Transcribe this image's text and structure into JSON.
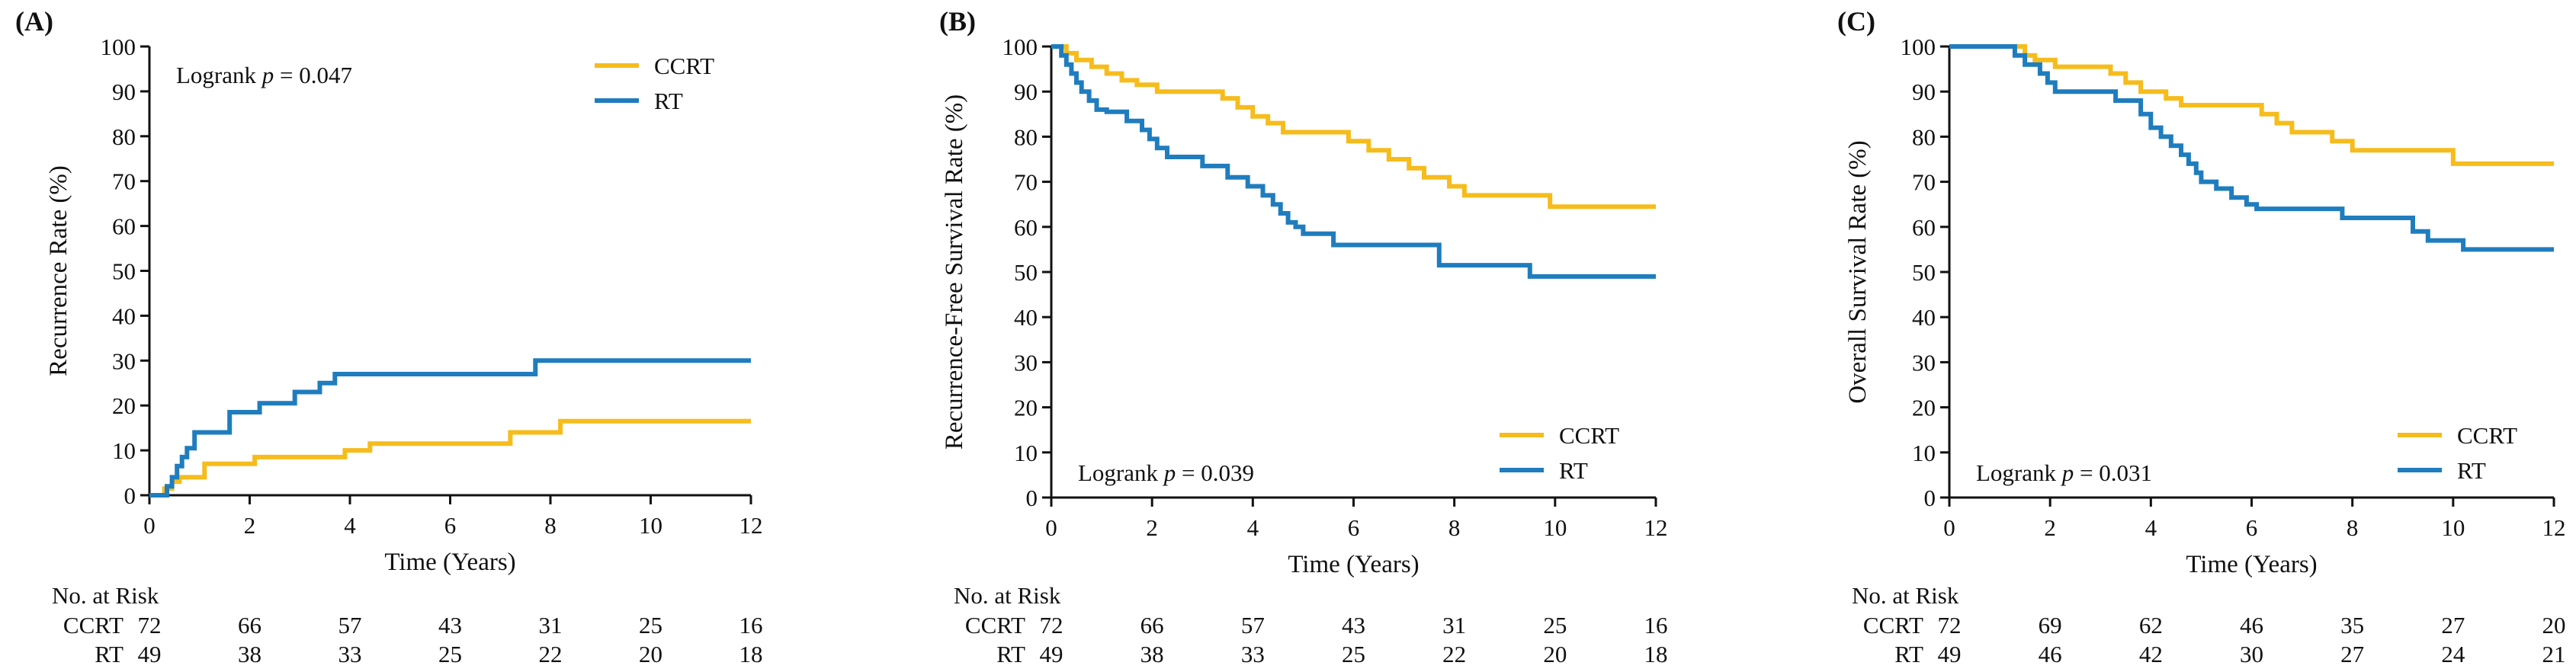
{
  "colors": {
    "CCRT": "#F5BC1C",
    "RT": "#1F7DBE"
  },
  "chart_data": [
    {
      "type": "line",
      "step": true,
      "panel_label": "(A)",
      "title": "",
      "xlabel": "Time (Years)",
      "ylabel": "Recurrence Rate (%)",
      "xlim": [
        0,
        12
      ],
      "ylim": [
        0,
        100
      ],
      "x_ticks": [
        0,
        2,
        4,
        6,
        8,
        10,
        12
      ],
      "y_ticks": [
        0,
        10,
        20,
        30,
        40,
        50,
        60,
        70,
        80,
        90,
        100
      ],
      "annotation": {
        "prefix": "Logrank ",
        "italic": "p",
        "suffix": " = 0.047"
      },
      "annotation_position": "top-left",
      "legend_position": "top-right",
      "legend": [
        "CCRT",
        "RT"
      ],
      "series": [
        {
          "name": "CCRT",
          "x": [
            0,
            0.3,
            0.45,
            0.6,
            0.75,
            1.1,
            1.2,
            2.1,
            3.9,
            4.4,
            7.2,
            8.2,
            12
          ],
          "y": [
            0,
            1.5,
            3,
            4,
            4,
            7,
            7,
            8.5,
            10,
            11.5,
            14,
            16.5,
            16.5
          ]
        },
        {
          "name": "RT",
          "x": [
            0,
            0.35,
            0.45,
            0.55,
            0.65,
            0.75,
            0.9,
            1.6,
            2.2,
            2.9,
            3.4,
            3.7,
            7.7,
            12
          ],
          "y": [
            0,
            2,
            4,
            6.5,
            8.5,
            10.5,
            14,
            18.5,
            20.5,
            23,
            25,
            27,
            30,
            30
          ]
        }
      ],
      "risk_table": {
        "title": "No. at Risk",
        "times": [
          0,
          2,
          4,
          6,
          8,
          10,
          12
        ],
        "rows": [
          {
            "name": "CCRT",
            "values": [
              72,
              66,
              57,
              43,
              31,
              25,
              16
            ]
          },
          {
            "name": "RT",
            "values": [
              49,
              38,
              33,
              25,
              22,
              20,
              18
            ]
          }
        ]
      }
    },
    {
      "type": "line",
      "step": true,
      "panel_label": "(B)",
      "title": "",
      "xlabel": "Time (Years)",
      "ylabel": "Recurrence-Free Survival Rate (%)",
      "xlim": [
        0,
        12
      ],
      "ylim": [
        0,
        100
      ],
      "x_ticks": [
        0,
        2,
        4,
        6,
        8,
        10,
        12
      ],
      "y_ticks": [
        0,
        10,
        20,
        30,
        40,
        50,
        60,
        70,
        80,
        90,
        100
      ],
      "annotation": {
        "prefix": "Logrank ",
        "italic": "p",
        "suffix": " = 0.039"
      },
      "annotation_position": "bottom-left",
      "legend_position": "bottom-right",
      "legend": [
        "CCRT",
        "RT"
      ],
      "series": [
        {
          "name": "CCRT",
          "x": [
            0,
            0.3,
            0.5,
            0.8,
            1.1,
            1.4,
            1.7,
            2.1,
            3.4,
            3.7,
            4,
            4.3,
            4.6,
            5.9,
            6.3,
            6.7,
            7.1,
            7.4,
            7.9,
            8.2,
            9.9,
            12
          ],
          "y": [
            100,
            98.5,
            97,
            95.5,
            94,
            92.5,
            91.5,
            90,
            88.5,
            86.5,
            84.5,
            83,
            81,
            79,
            77,
            75,
            73,
            71,
            69,
            67,
            64.5,
            64.5
          ]
        },
        {
          "name": "RT",
          "x": [
            0,
            0.2,
            0.3,
            0.4,
            0.5,
            0.6,
            0.75,
            0.9,
            1.1,
            1.5,
            1.8,
            1.95,
            2.1,
            2.3,
            3,
            3.5,
            3.9,
            4.2,
            4.4,
            4.55,
            4.7,
            4.85,
            5,
            5.6,
            7.7,
            9.5,
            12
          ],
          "y": [
            100,
            98,
            96,
            94,
            92,
            90,
            88,
            86,
            85.5,
            83.5,
            81.5,
            79.5,
            77.5,
            75.5,
            73.5,
            71,
            69,
            67,
            65,
            63,
            61,
            60,
            58.5,
            56,
            51.5,
            49,
            49
          ]
        }
      ],
      "risk_table": {
        "title": "No. at Risk",
        "times": [
          0,
          2,
          4,
          6,
          8,
          10,
          12
        ],
        "rows": [
          {
            "name": "CCRT",
            "values": [
              72,
              66,
              57,
              43,
              31,
              25,
              16
            ]
          },
          {
            "name": "RT",
            "values": [
              49,
              38,
              33,
              25,
              22,
              20,
              18
            ]
          }
        ]
      }
    },
    {
      "type": "line",
      "step": true,
      "panel_label": "(C)",
      "title": "",
      "xlabel": "Time (Years)",
      "ylabel": "Overall Survival Rate (%)",
      "xlim": [
        0,
        12
      ],
      "ylim": [
        0,
        100
      ],
      "x_ticks": [
        0,
        2,
        4,
        6,
        8,
        10,
        12
      ],
      "y_ticks": [
        0,
        10,
        20,
        30,
        40,
        50,
        60,
        70,
        80,
        90,
        100
      ],
      "annotation": {
        "prefix": "Logrank ",
        "italic": "p",
        "suffix": " = 0.031"
      },
      "annotation_position": "bottom-left",
      "legend_position": "bottom-right",
      "legend": [
        "CCRT",
        "RT"
      ],
      "series": [
        {
          "name": "CCRT",
          "x": [
            0,
            1.5,
            1.7,
            2.1,
            3.2,
            3.5,
            3.8,
            4.3,
            4.6,
            6.2,
            6.5,
            6.8,
            7.1,
            7.6,
            8,
            10,
            12
          ],
          "y": [
            100,
            98,
            97,
            95.5,
            94,
            92,
            90,
            88.5,
            87,
            85,
            83,
            81,
            81,
            79,
            77,
            74,
            74
          ]
        },
        {
          "name": "RT",
          "x": [
            0,
            1.3,
            1.5,
            1.8,
            1.95,
            2.1,
            3.3,
            3.8,
            4,
            4.2,
            4.4,
            4.6,
            4.75,
            4.9,
            5,
            5.3,
            5.6,
            5.9,
            6.1,
            7.8,
            9.2,
            9.5,
            10.2,
            12
          ],
          "y": [
            100,
            98,
            96,
            94,
            92,
            90,
            88,
            85,
            82,
            80,
            78,
            76,
            74,
            72,
            70,
            68.5,
            66.5,
            65,
            64,
            62,
            59,
            57,
            55,
            55
          ]
        }
      ],
      "risk_table": {
        "title": "No. at Risk",
        "times": [
          0,
          2,
          4,
          6,
          8,
          10,
          12
        ],
        "rows": [
          {
            "name": "CCRT",
            "values": [
              72,
              69,
              62,
              46,
              35,
              27,
              20
            ]
          },
          {
            "name": "RT",
            "values": [
              49,
              46,
              42,
              30,
              27,
              24,
              21
            ]
          }
        ]
      }
    }
  ]
}
